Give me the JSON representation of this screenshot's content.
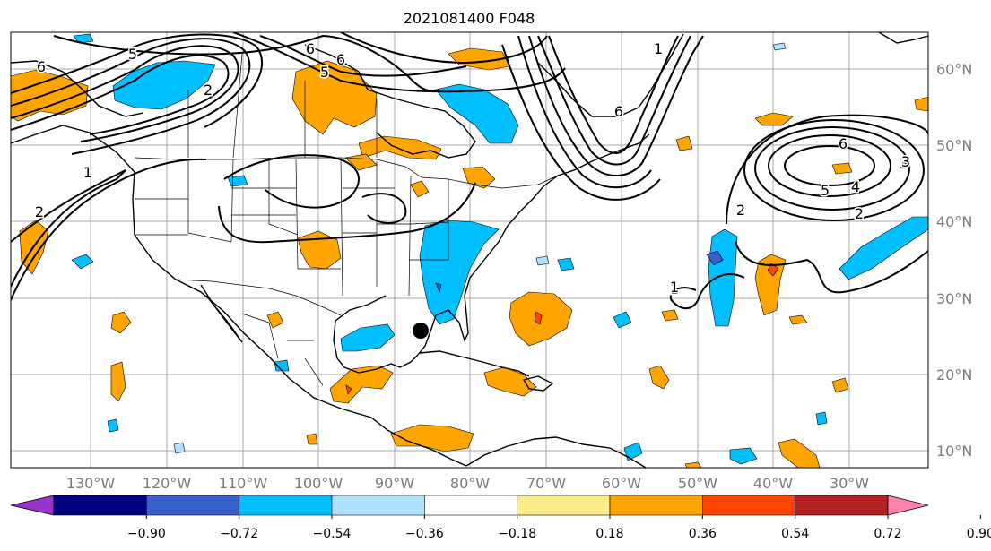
{
  "title": "2021081400 F048",
  "latitude_labels": [
    "60°N",
    "50°N",
    "40°N",
    "30°N",
    "20°N",
    "10°N"
  ],
  "longitude_labels": [
    "130°W",
    "120°W",
    "110°W",
    "100°W",
    "90°W",
    "80°W",
    "70°W",
    "60°W",
    "50°W",
    "40°W",
    "30°W"
  ],
  "colorbar": {
    "colors": [
      "#9932cc",
      "#000080",
      "#3a5fcd",
      "#00bfff",
      "#b0e2ff",
      "#ffffff",
      "#ffec8b",
      "#ffa500",
      "#ff4500",
      "#b22222",
      "#ff82ab"
    ],
    "tick_labels": [
      "−0.90",
      "−0.72",
      "−0.54",
      "−0.36",
      "−0.18",
      "0.18",
      "0.36",
      "0.54",
      "0.72",
      "0.90"
    ]
  },
  "contour_labels": [
    "5",
    "6",
    "6",
    "5",
    "6",
    "2",
    "1",
    "2",
    "1",
    "2",
    "3",
    "6",
    "6",
    "5",
    "4",
    "3",
    "2",
    "1",
    "1"
  ],
  "marker": "storm-center-dot"
}
